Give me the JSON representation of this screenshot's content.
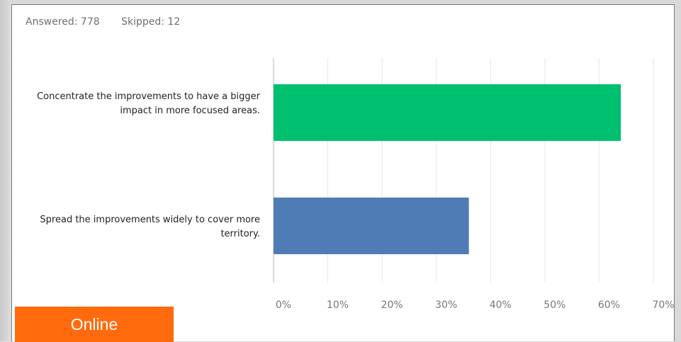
{
  "stats": {
    "answered": "Answered: 778",
    "skipped": "Skipped: 12"
  },
  "badge": {
    "label": "Online",
    "color": "#ff6a0d"
  },
  "chart_data": {
    "type": "bar",
    "orientation": "horizontal",
    "categories": [
      "Concentrate the improvements to have a bigger impact in more focused areas.",
      "Spread the improvements widely to cover more territory."
    ],
    "values": [
      64,
      36
    ],
    "colors": [
      "#00bf6f",
      "#507cb6"
    ],
    "xlim": [
      0,
      70
    ],
    "x_ticks": [
      0,
      10,
      20,
      30,
      40,
      50,
      60,
      70
    ],
    "x_tick_labels": [
      "0%",
      "10%",
      "20%",
      "30%",
      "40%",
      "50%",
      "60%",
      "70%"
    ],
    "grid": true,
    "title": "",
    "xlabel": "",
    "ylabel": ""
  }
}
